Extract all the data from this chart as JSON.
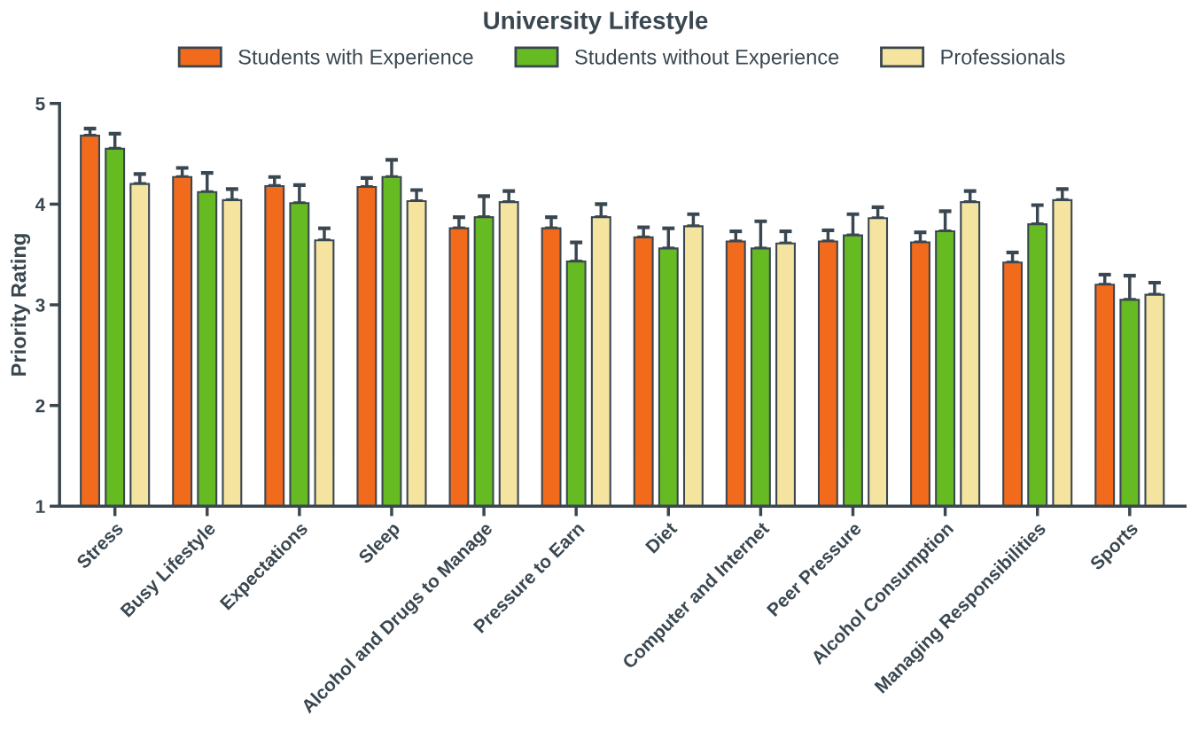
{
  "chart_data": {
    "type": "bar",
    "title": "University Lifestyle",
    "ylabel": "Priority Rating",
    "categories": [
      "Stress",
      "Busy Lifestyle",
      "Expectations",
      "Sleep",
      "Alcohol and Drugs to Manage",
      "Pressure to Earn",
      "Diet",
      "Computer and Internet",
      "Peer Pressure",
      "Alcohol Consumption",
      "Managing Responsibilities",
      "Sports"
    ],
    "series": [
      {
        "name": "Students with Experience",
        "color": "#f26b1d",
        "values": [
          4.68,
          4.27,
          4.18,
          4.17,
          3.76,
          3.76,
          3.67,
          3.63,
          3.63,
          3.62,
          3.42,
          3.2
        ],
        "errors": [
          [
            4.68,
            4.75
          ],
          [
            4.27,
            4.36
          ],
          [
            4.18,
            4.27
          ],
          [
            4.17,
            4.26
          ],
          [
            3.76,
            3.87
          ],
          [
            3.76,
            3.87
          ],
          [
            3.67,
            3.77
          ],
          [
            3.63,
            3.73
          ],
          [
            3.63,
            3.74
          ],
          [
            3.62,
            3.72
          ],
          [
            3.42,
            3.52
          ],
          [
            3.2,
            3.3
          ]
        ]
      },
      {
        "name": "Students without Experience",
        "color": "#66bb22",
        "values": [
          4.55,
          4.12,
          4.01,
          4.27,
          3.87,
          3.43,
          3.56,
          3.56,
          3.69,
          3.73,
          3.8,
          3.05
        ],
        "errors": [
          [
            4.55,
            4.7
          ],
          [
            4.12,
            4.31
          ],
          [
            4.01,
            4.19
          ],
          [
            4.27,
            4.44
          ],
          [
            3.87,
            4.08
          ],
          [
            3.43,
            3.62
          ],
          [
            3.56,
            3.76
          ],
          [
            3.56,
            3.83
          ],
          [
            3.69,
            3.9
          ],
          [
            3.73,
            3.93
          ],
          [
            3.8,
            3.99
          ],
          [
            3.05,
            3.29
          ]
        ]
      },
      {
        "name": "Professionals",
        "color": "#f5e3a0",
        "values": [
          4.2,
          4.04,
          3.64,
          4.03,
          4.02,
          3.87,
          3.78,
          3.61,
          3.86,
          4.02,
          4.04,
          3.1
        ],
        "errors": [
          [
            4.2,
            4.3
          ],
          [
            4.04,
            4.15
          ],
          [
            3.64,
            3.76
          ],
          [
            4.03,
            4.14
          ],
          [
            4.02,
            4.13
          ],
          [
            3.87,
            4.0
          ],
          [
            3.78,
            3.9
          ],
          [
            3.61,
            3.73
          ],
          [
            3.86,
            3.97
          ],
          [
            4.02,
            4.13
          ],
          [
            4.04,
            4.15
          ],
          [
            3.1,
            3.22
          ]
        ]
      }
    ],
    "ylim": [
      1,
      5
    ],
    "yticks": [
      1,
      2,
      3,
      4,
      5
    ],
    "grid": false,
    "legend": "top"
  }
}
